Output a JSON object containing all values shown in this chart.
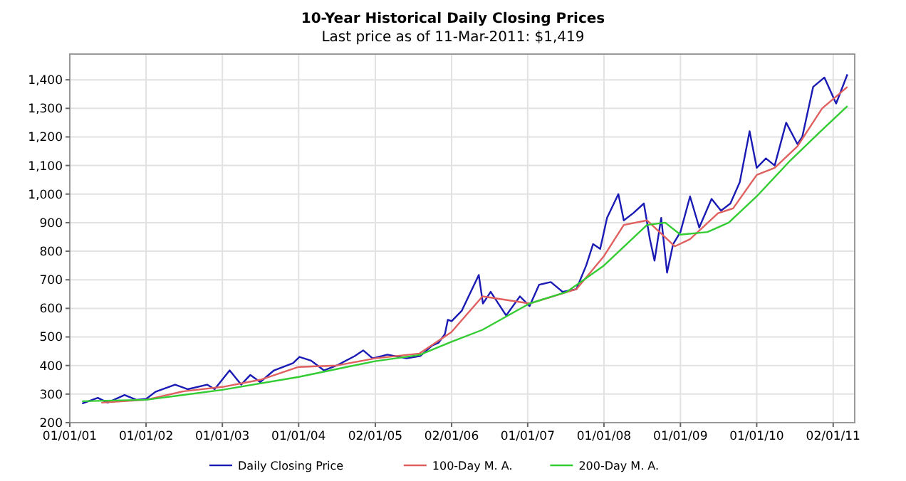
{
  "chart_data": {
    "type": "line",
    "title": "10-Year Historical Daily Closing Prices",
    "subtitle": "Last price as of 11-Mar-2011: $1,419",
    "xlim": [
      "2001-01-01",
      "2011-04-15"
    ],
    "xticks": [
      {
        "value": "2001-01-01",
        "label": "01/01/01"
      },
      {
        "value": "2002-01-01",
        "label": "01/01/02"
      },
      {
        "value": "2003-01-01",
        "label": "01/01/03"
      },
      {
        "value": "2004-01-01",
        "label": "01/01/04"
      },
      {
        "value": "2005-01-02",
        "label": "02/01/05"
      },
      {
        "value": "2006-01-02",
        "label": "02/01/06"
      },
      {
        "value": "2007-01-01",
        "label": "01/01/07"
      },
      {
        "value": "2008-01-01",
        "label": "01/01/08"
      },
      {
        "value": "2009-01-01",
        "label": "01/01/09"
      },
      {
        "value": "2010-01-01",
        "label": "01/01/10"
      },
      {
        "value": "2011-01-02",
        "label": "02/01/11"
      }
    ],
    "ylim": [
      200,
      1490
    ],
    "yticks": [
      200,
      300,
      400,
      500,
      600,
      700,
      800,
      900,
      {
        "value": 1000,
        "label": "1,000"
      },
      {
        "value": 1100,
        "label": "1,100"
      },
      {
        "value": 1200,
        "label": "1,200"
      },
      {
        "value": 1300,
        "label": "1,300"
      },
      {
        "value": 1400,
        "label": "1,400"
      }
    ],
    "grid": true,
    "legend": "bottom",
    "marker": "none",
    "line_style": "solid",
    "series": [
      {
        "name": "Daily Closing Price",
        "color": "#1a1ab4",
        "x": [
          "2001-03-01",
          "2001-05-15",
          "2001-07-01",
          "2001-09-20",
          "2001-11-15",
          "2002-01-01",
          "2002-02-15",
          "2002-05-20",
          "2002-07-20",
          "2002-10-20",
          "2002-11-25",
          "2003-02-05",
          "2003-04-01",
          "2003-05-15",
          "2003-07-01",
          "2003-09-05",
          "2003-12-05",
          "2004-01-05",
          "2004-03-01",
          "2004-05-01",
          "2004-07-01",
          "2004-09-25",
          "2004-11-05",
          "2004-12-20",
          "2005-03-01",
          "2005-06-01",
          "2005-08-05",
          "2005-10-01",
          "2005-11-01",
          "2005-12-01",
          "2005-12-15",
          "2006-01-02",
          "2006-02-20",
          "2006-05-12",
          "2006-06-01",
          "2006-07-08",
          "2006-09-20",
          "2006-11-25",
          "2007-01-10",
          "2007-02-25",
          "2007-04-22",
          "2007-06-17",
          "2007-08-22",
          "2007-10-08",
          "2007-11-10",
          "2007-12-14",
          "2008-01-16",
          "2008-03-10",
          "2008-04-05",
          "2008-05-20",
          "2008-07-10",
          "2008-08-08",
          "2008-08-30",
          "2008-10-01",
          "2008-10-29",
          "2008-11-27",
          "2009-01-01",
          "2009-02-16",
          "2009-04-01",
          "2009-05-30",
          "2009-07-14",
          "2009-08-28",
          "2009-10-12",
          "2009-11-28",
          "2010-01-01",
          "2010-02-14",
          "2010-03-28",
          "2010-05-22",
          "2010-07-15",
          "2010-08-07",
          "2010-09-28",
          "2010-11-21",
          "2011-01-16",
          "2011-03-11"
        ],
        "values": [
          267,
          287,
          270,
          297,
          280,
          283,
          308,
          333,
          317,
          333,
          317,
          383,
          333,
          367,
          342,
          383,
          408,
          430,
          417,
          383,
          400,
          433,
          453,
          425,
          438,
          425,
          433,
          470,
          480,
          510,
          560,
          555,
          592,
          717,
          617,
          658,
          575,
          642,
          608,
          683,
          692,
          658,
          667,
          750,
          825,
          808,
          917,
          1000,
          908,
          933,
          967,
          842,
          767,
          917,
          725,
          825,
          867,
          992,
          883,
          983,
          942,
          967,
          1042,
          1220,
          1092,
          1125,
          1100,
          1250,
          1175,
          1200,
          1375,
          1408,
          1317,
          1419
        ]
      },
      {
        "name": "100-Day M. A.",
        "color": "#e06060",
        "x": [
          "2001-06-01",
          "2002-01-01",
          "2002-07-01",
          "2003-01-01",
          "2003-07-01",
          "2004-01-01",
          "2004-07-01",
          "2005-01-01",
          "2005-08-01",
          "2006-01-01",
          "2006-05-30",
          "2007-01-10",
          "2007-08-22",
          "2008-01-01",
          "2008-04-05",
          "2008-07-25",
          "2008-12-05",
          "2009-02-16",
          "2009-06-30",
          "2009-09-10",
          "2010-01-01",
          "2010-03-28",
          "2010-07-15",
          "2010-11-10",
          "2011-03-11"
        ],
        "values": [
          270,
          280,
          310,
          325,
          350,
          395,
          400,
          425,
          442,
          517,
          642,
          617,
          667,
          783,
          892,
          908,
          817,
          842,
          933,
          950,
          1067,
          1092,
          1167,
          1300,
          1375
        ]
      },
      {
        "name": "200-Day M. A.",
        "color": "#33cc33",
        "x": [
          "2001-03-01",
          "2002-01-01",
          "2003-01-01",
          "2004-01-01",
          "2005-01-01",
          "2005-08-01",
          "2006-01-01",
          "2006-05-30",
          "2007-01-10",
          "2007-07-08",
          "2008-01-01",
          "2008-07-25",
          "2008-10-20",
          "2009-01-01",
          "2009-05-10",
          "2009-08-20",
          "2010-01-01",
          "2010-06-10",
          "2010-10-30",
          "2011-03-11"
        ],
        "values": [
          275,
          280,
          315,
          360,
          415,
          437,
          483,
          525,
          617,
          658,
          750,
          892,
          900,
          858,
          867,
          900,
          992,
          1117,
          1217,
          1308
        ]
      }
    ]
  }
}
